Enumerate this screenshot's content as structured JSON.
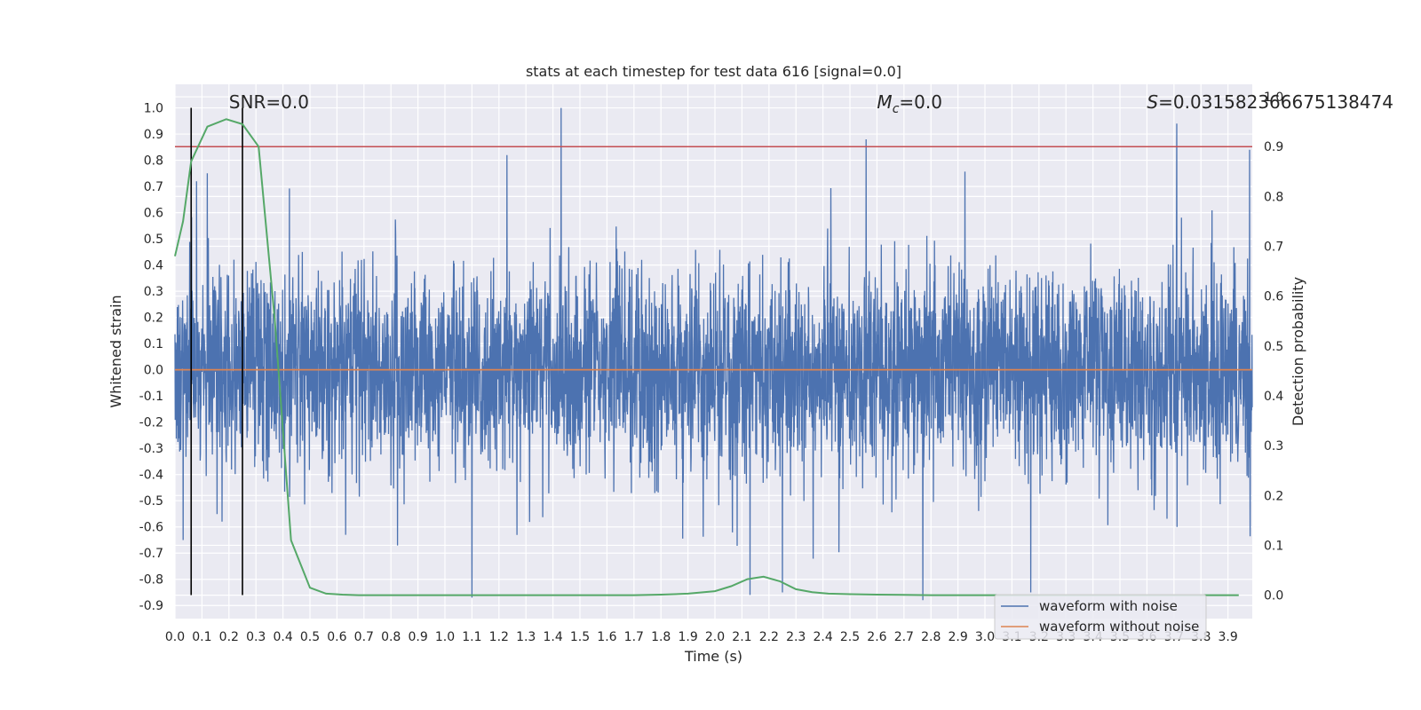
{
  "chart_data": {
    "type": "line",
    "title": "stats at each timestep for test data 616 [signal=0.0]",
    "xlabel": "Time (s)",
    "ylabel": "Whitened strain",
    "y2label": "Detection probability",
    "xlim": [
      0.0,
      3.99
    ],
    "ylim": [
      -0.95,
      1.09
    ],
    "y2lim": [
      -0.047,
      1.025
    ],
    "x_ticks": [
      "0.0",
      "0.1",
      "0.2",
      "0.3",
      "0.4",
      "0.5",
      "0.6",
      "0.7",
      "0.8",
      "0.9",
      "1.0",
      "1.1",
      "1.2",
      "1.3",
      "1.4",
      "1.5",
      "1.6",
      "1.7",
      "1.8",
      "1.9",
      "2.0",
      "2.1",
      "2.2",
      "2.3",
      "2.4",
      "2.5",
      "2.6",
      "2.7",
      "2.8",
      "2.9",
      "3.0",
      "3.1",
      "3.2",
      "3.3",
      "3.4",
      "3.5",
      "3.6",
      "3.7",
      "3.8",
      "3.9"
    ],
    "y_ticks": [
      "1.0",
      "0.9",
      "0.8",
      "0.7",
      "0.6",
      "0.5",
      "0.4",
      "0.3",
      "0.2",
      "0.1",
      "0.0",
      "-0.1",
      "-0.2",
      "-0.3",
      "-0.4",
      "-0.5",
      "-0.6",
      "-0.7",
      "-0.8",
      "-0.9"
    ],
    "y2_ticks": [
      "1.0",
      "0.9",
      "0.8",
      "0.7",
      "0.6",
      "0.5",
      "0.4",
      "0.3",
      "0.2",
      "0.1",
      "0.0"
    ],
    "annotations": {
      "snr": "SNR=0.0",
      "mc_symbol": "M",
      "mc_sub": "c",
      "mc_value": "=0.0",
      "s_symbol": "S",
      "s_value": "=0.031582366675138474"
    },
    "series": [
      {
        "name": "waveform with noise",
        "color": "#4c72b0",
        "kind": "noise",
        "x_range": [
          0.0,
          3.99
        ],
        "approx_amplitude": 0.35,
        "notable_peaks": [
          [
            0.08,
            0.72
          ],
          [
            0.12,
            0.75
          ],
          [
            1.23,
            0.82
          ],
          [
            1.43,
            1.0
          ],
          [
            2.56,
            0.88
          ],
          [
            3.71,
            0.94
          ],
          [
            3.98,
            0.84
          ]
        ],
        "notable_troughs": [
          [
            0.03,
            -0.65
          ],
          [
            1.1,
            -0.87
          ],
          [
            2.13,
            -0.86
          ],
          [
            2.25,
            -0.85
          ],
          [
            2.77,
            -0.88
          ],
          [
            3.17,
            -0.85
          ]
        ]
      },
      {
        "name": "waveform without noise",
        "color": "#dd8452",
        "x": [
          0.0,
          3.99
        ],
        "values": [
          0.0,
          0.0
        ]
      },
      {
        "name": "detection probability",
        "color": "#55a868",
        "axis": "right",
        "x": [
          0.0,
          0.03,
          0.06,
          0.12,
          0.19,
          0.25,
          0.31,
          0.37,
          0.43,
          0.5,
          0.56,
          0.62,
          0.68,
          0.75,
          0.81,
          0.87,
          0.93,
          1.0,
          1.1,
          1.2,
          1.3,
          1.4,
          1.5,
          1.6,
          1.7,
          1.8,
          1.9,
          2.0,
          2.06,
          2.12,
          2.18,
          2.24,
          2.3,
          2.36,
          2.42,
          2.5,
          2.6,
          2.8,
          3.0,
          3.2,
          3.4,
          3.6,
          3.8,
          3.94
        ],
        "values": [
          0.68,
          0.75,
          0.87,
          0.94,
          0.955,
          0.945,
          0.9,
          0.55,
          0.11,
          0.015,
          0.003,
          0.001,
          0.0,
          0.0,
          0.0,
          0.0,
          0.0,
          0.0,
          0.0,
          0.0,
          0.0,
          0.0,
          0.0,
          0.0,
          0.0,
          0.001,
          0.003,
          0.008,
          0.018,
          0.032,
          0.037,
          0.028,
          0.012,
          0.006,
          0.003,
          0.002,
          0.001,
          0.0,
          0.0,
          0.0,
          0.0,
          0.0,
          0.0,
          0.0
        ]
      }
    ],
    "threshold": {
      "axis": "right",
      "value": 0.9,
      "color": "#c44e52"
    },
    "vlines": [
      0.06,
      0.25
    ],
    "vline_range": [
      -0.86,
      1.0
    ],
    "legend": {
      "position": "lower-right",
      "entries": [
        "waveform with noise",
        "waveform without noise"
      ]
    },
    "grid": true
  }
}
